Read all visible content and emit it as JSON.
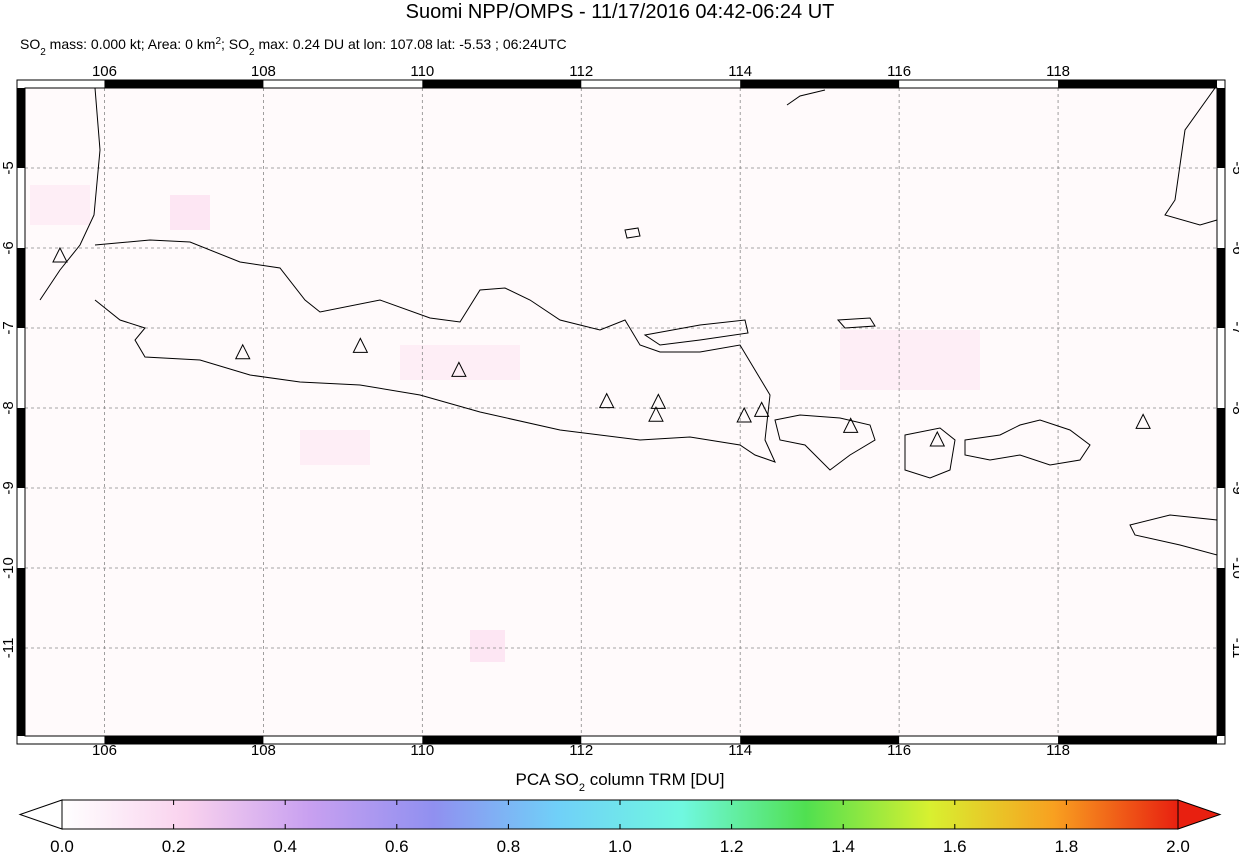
{
  "title": "Suomi NPP/OMPS - 11/17/2016 04:42-06:24 UT",
  "subtitle": [
    "SO",
    "2",
    " mass: 0.000 kt; Area: 0 km",
    "2",
    "; SO",
    "2",
    " max: 0.24 DU at lon: 107.08 lat: -5.53 ; 06:24UTC"
  ],
  "map": {
    "xlim": [
      105,
      120
    ],
    "ylim": [
      -4,
      -12.1
    ],
    "xticks": [
      106,
      108,
      110,
      112,
      114,
      116,
      118
    ],
    "yticks": [
      -5,
      -6,
      -7,
      -8,
      -9,
      -10,
      -11
    ],
    "grid": true,
    "volcanoes": [
      {
        "lon": 105.44,
        "lat": -6.1
      },
      {
        "lon": 107.74,
        "lat": -7.31
      },
      {
        "lon": 109.22,
        "lat": -7.23
      },
      {
        "lon": 110.46,
        "lat": -7.53
      },
      {
        "lon": 112.32,
        "lat": -7.92
      },
      {
        "lon": 112.97,
        "lat": -7.93
      },
      {
        "lon": 112.94,
        "lat": -8.09
      },
      {
        "lon": 114.05,
        "lat": -8.1
      },
      {
        "lon": 114.27,
        "lat": -8.03
      },
      {
        "lon": 115.39,
        "lat": -8.23
      },
      {
        "lon": 116.48,
        "lat": -8.4
      },
      {
        "lon": 119.07,
        "lat": -8.18
      }
    ]
  },
  "colorbar": {
    "label": [
      "PCA SO",
      "2",
      " column TRM [DU]"
    ],
    "lim": [
      0,
      2
    ],
    "ticks": [
      {
        "value": 0,
        "label": "0.0"
      },
      0.2,
      0.4,
      0.6,
      0.8,
      {
        "value": 1,
        "label": "1.0"
      },
      1.2,
      1.4,
      1.6,
      1.8,
      {
        "value": 2,
        "label": "2.0"
      }
    ],
    "colors": [
      "#ffffff",
      "#f9d2ee",
      "#c8a0f0",
      "#9090f0",
      "#70d0f8",
      "#70f8e0",
      "#50e050",
      "#d8f030",
      "#f8a020",
      "#e82010"
    ]
  }
}
